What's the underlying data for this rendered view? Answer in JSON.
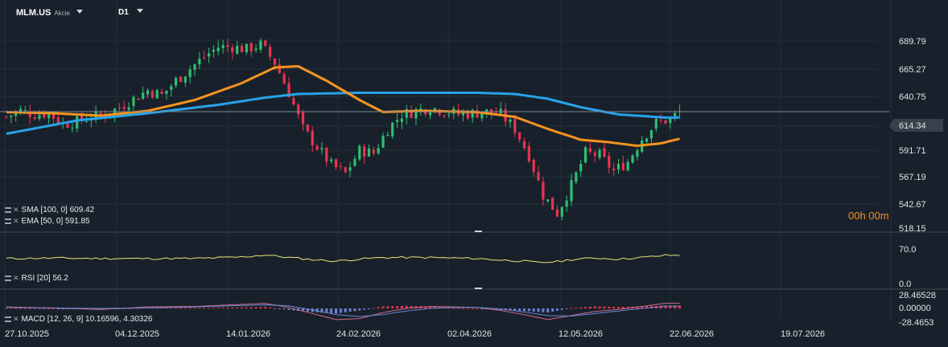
{
  "header": {
    "symbol": "MLM.US",
    "instrument_type": "Akcie",
    "timeframe": "D1"
  },
  "colors": {
    "background": "#18212b",
    "grid": "#242f3a",
    "bull": "#2fbf71",
    "bear": "#e8344e",
    "sma": "#27a3ea",
    "ema": "#f7931e",
    "rsi": "#e8e37a",
    "macd_line": "#d06a8a",
    "signal_line": "#6b86d6",
    "hist_pos": "#e8344e",
    "hist_neg": "#6f7fd6"
  },
  "timer": "00h 00m",
  "indicators": {
    "sma_label": "SMA [100, 0] 609.42",
    "ema_label": "EMA [50, 0] 591.85",
    "rsi_label": "RSI [20] 56.2",
    "macd_label": "MACD [12, 26, 9] 10.16596, 4.30326"
  },
  "chart_data": [
    {
      "type": "candlestick",
      "title": "MLM.US",
      "y_ticks": [
        "689.79",
        "665.27",
        "640.75",
        "614.34",
        "591.71",
        "567.19",
        "542.67",
        "518.15"
      ],
      "ylim": [
        515,
        707
      ],
      "last_price": "614.34",
      "x_ticks": [
        "27.10.2025",
        "04.12.2025",
        "14.01.2026",
        "24.02.2026",
        "02.04.2026",
        "12.05.2026",
        "22.06.2026",
        "19.07.2026"
      ],
      "series": [
        {
          "name": "SMA [100, 0]",
          "value": 609.42
        },
        {
          "name": "EMA [50, 0]",
          "value": 591.85
        }
      ],
      "close_keypoints": [
        [
          0,
          610
        ],
        [
          3,
          615
        ],
        [
          6,
          612
        ],
        [
          9,
          613
        ],
        [
          12,
          604
        ],
        [
          15,
          606
        ],
        [
          18,
          610
        ],
        [
          21,
          612
        ],
        [
          24,
          618
        ],
        [
          27,
          625
        ],
        [
          30,
          632
        ],
        [
          33,
          628
        ],
        [
          36,
          640
        ],
        [
          39,
          650
        ],
        [
          42,
          660
        ],
        [
          45,
          668
        ],
        [
          48,
          668
        ],
        [
          51,
          666
        ],
        [
          54,
          670
        ],
        [
          57,
          655
        ],
        [
          60,
          630
        ],
        [
          63,
          600
        ],
        [
          66,
          585
        ],
        [
          69,
          570
        ],
        [
          72,
          563
        ],
        [
          75,
          582
        ],
        [
          78,
          580
        ],
        [
          81,
          600
        ],
        [
          84,
          612
        ],
        [
          87,
          615
        ],
        [
          90,
          618
        ],
        [
          93,
          615
        ],
        [
          96,
          612
        ],
        [
          99,
          613
        ],
        [
          102,
          614
        ],
        [
          105,
          612
        ],
        [
          108,
          600
        ],
        [
          111,
          578
        ],
        [
          114,
          545
        ],
        [
          117,
          530
        ],
        [
          120,
          553
        ],
        [
          123,
          580
        ],
        [
          126,
          578
        ],
        [
          129,
          565
        ],
        [
          132,
          573
        ],
        [
          135,
          592
        ],
        [
          138,
          605
        ],
        [
          141,
          608
        ],
        [
          143,
          614
        ]
      ],
      "sma_keypoints": [
        [
          0,
          596
        ],
        [
          15,
          607
        ],
        [
          30,
          613
        ],
        [
          45,
          620
        ],
        [
          55,
          626
        ],
        [
          62,
          629
        ],
        [
          75,
          630
        ],
        [
          90,
          630
        ],
        [
          100,
          630
        ],
        [
          108,
          629
        ],
        [
          115,
          625
        ],
        [
          122,
          618
        ],
        [
          130,
          612
        ],
        [
          140,
          609.42
        ],
        [
          143,
          609.42
        ]
      ],
      "ema_keypoints": [
        [
          0,
          614
        ],
        [
          10,
          613
        ],
        [
          20,
          611
        ],
        [
          30,
          615
        ],
        [
          40,
          624
        ],
        [
          50,
          638
        ],
        [
          57,
          651
        ],
        [
          62,
          652
        ],
        [
          68,
          640
        ],
        [
          75,
          624
        ],
        [
          80,
          614
        ],
        [
          88,
          615
        ],
        [
          100,
          614
        ],
        [
          108,
          610
        ],
        [
          115,
          600
        ],
        [
          122,
          591
        ],
        [
          128,
          589
        ],
        [
          134,
          586
        ],
        [
          139,
          588
        ],
        [
          143,
          591.85
        ]
      ]
    },
    {
      "type": "line",
      "title": "RSI [20]",
      "y_ticks": [
        "70.0",
        "0.0"
      ],
      "ylim": [
        0,
        70
      ],
      "last_value": 56.2,
      "keypoints": [
        [
          0,
          50
        ],
        [
          10,
          51
        ],
        [
          20,
          50
        ],
        [
          30,
          50
        ],
        [
          40,
          50
        ],
        [
          50,
          53
        ],
        [
          55,
          57
        ],
        [
          60,
          52
        ],
        [
          65,
          48
        ],
        [
          70,
          45
        ],
        [
          75,
          49
        ],
        [
          80,
          52
        ],
        [
          90,
          52
        ],
        [
          100,
          50
        ],
        [
          105,
          47
        ],
        [
          110,
          45
        ],
        [
          113,
          42
        ],
        [
          117,
          44
        ],
        [
          120,
          48
        ],
        [
          125,
          51
        ],
        [
          130,
          49
        ],
        [
          135,
          52
        ],
        [
          140,
          56.2
        ],
        [
          143,
          56.2
        ]
      ]
    },
    {
      "type": "bar+line",
      "title": "MACD [12, 26, 9]",
      "y_ticks": [
        "28.46528",
        "0.00000",
        "-28.4653"
      ],
      "ylim": [
        -28.4653,
        28.46528
      ],
      "macd": 10.16596,
      "signal": 4.30326,
      "macd_keypoints": [
        [
          0,
          3
        ],
        [
          10,
          1
        ],
        [
          20,
          -2
        ],
        [
          30,
          3
        ],
        [
          40,
          4
        ],
        [
          50,
          8
        ],
        [
          55,
          10
        ],
        [
          60,
          2
        ],
        [
          65,
          -10
        ],
        [
          70,
          -22
        ],
        [
          75,
          -20
        ],
        [
          80,
          -8
        ],
        [
          85,
          0
        ],
        [
          90,
          4
        ],
        [
          95,
          3
        ],
        [
          100,
          2
        ],
        [
          105,
          -4
        ],
        [
          110,
          -12
        ],
        [
          115,
          -22
        ],
        [
          120,
          -14
        ],
        [
          125,
          -6
        ],
        [
          130,
          -2
        ],
        [
          135,
          4
        ],
        [
          140,
          10.17
        ],
        [
          143,
          10.17
        ]
      ],
      "signal_keypoints": [
        [
          0,
          2
        ],
        [
          10,
          1
        ],
        [
          20,
          0
        ],
        [
          30,
          1
        ],
        [
          40,
          3
        ],
        [
          50,
          6
        ],
        [
          55,
          7
        ],
        [
          60,
          5
        ],
        [
          65,
          -3
        ],
        [
          70,
          -12
        ],
        [
          75,
          -16
        ],
        [
          80,
          -12
        ],
        [
          85,
          -5
        ],
        [
          90,
          0
        ],
        [
          95,
          2
        ],
        [
          100,
          2
        ],
        [
          105,
          -1
        ],
        [
          110,
          -7
        ],
        [
          115,
          -14
        ],
        [
          120,
          -15
        ],
        [
          125,
          -10
        ],
        [
          130,
          -5
        ],
        [
          135,
          0
        ],
        [
          140,
          4.3
        ],
        [
          143,
          4.3
        ]
      ]
    }
  ]
}
